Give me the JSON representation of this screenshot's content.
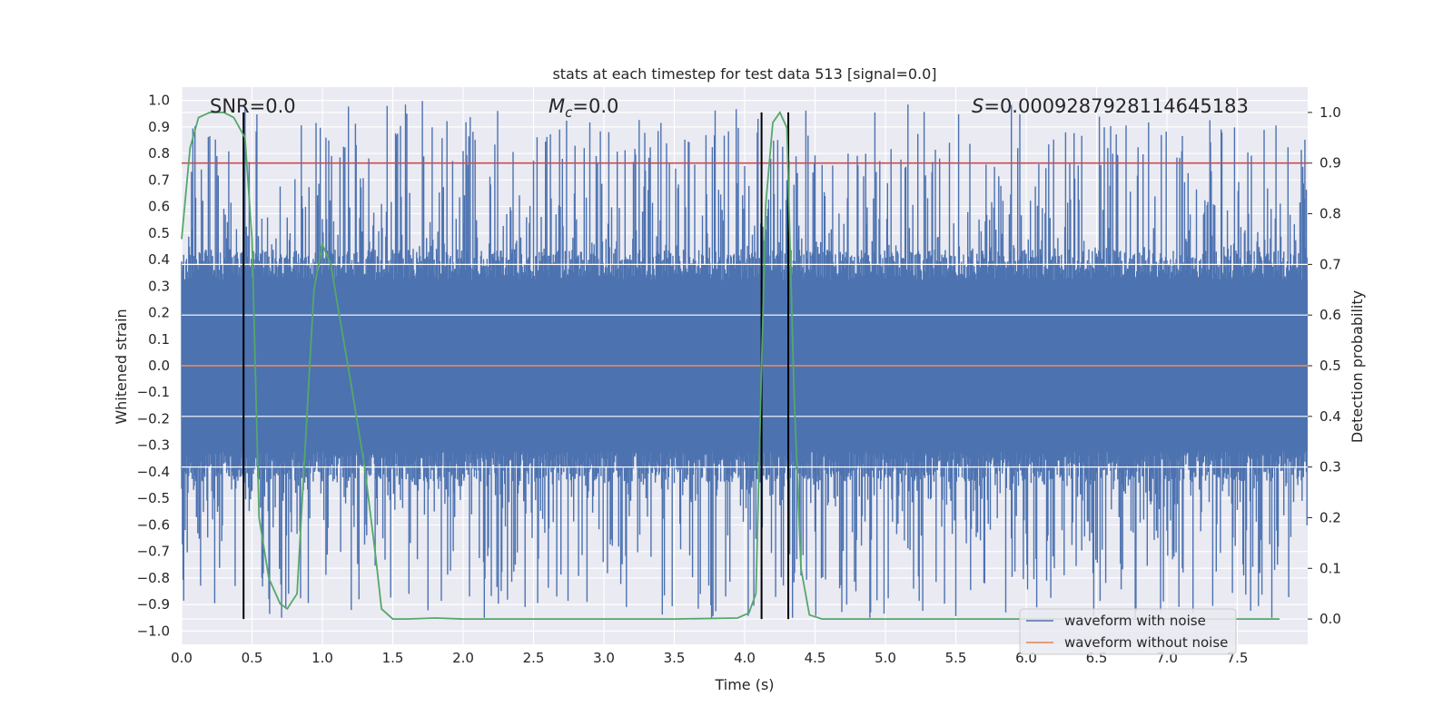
{
  "chart_data": {
    "type": "line",
    "title": "stats at each timestep for test data 513 [signal=0.0]",
    "xlabel": "Time (s)",
    "ylabel": "Whitened strain",
    "y2label": "Detection probability",
    "xlim": [
      0.0,
      8.0
    ],
    "ylim": [
      -1.05,
      1.05
    ],
    "y2lim": [
      -0.05,
      1.05
    ],
    "xticks": [
      "0.0",
      "0.5",
      "1.0",
      "1.5",
      "2.0",
      "2.5",
      "3.0",
      "3.5",
      "4.0",
      "4.5",
      "5.0",
      "5.5",
      "6.0",
      "6.5",
      "7.0",
      "7.5"
    ],
    "yticks": [
      "1.0",
      "0.9",
      "0.8",
      "0.7",
      "0.6",
      "0.5",
      "0.4",
      "0.3",
      "0.2",
      "0.1",
      "0.0",
      "-0.1",
      "-0.2",
      "-0.3",
      "-0.4",
      "-0.5",
      "-0.6",
      "-0.7",
      "-0.8",
      "-0.9",
      "-1.0"
    ],
    "y2ticks": [
      "1.0",
      "0.9",
      "0.8",
      "0.7",
      "0.6",
      "0.5",
      "0.4",
      "0.3",
      "0.2",
      "0.1",
      "0.0"
    ],
    "annotations": {
      "snr": "SNR=0.0",
      "mc_symbol": "M",
      "mc_sub": "c",
      "mc_value": "=0.0",
      "s_symbol": "S",
      "s_value": "=0.0009287928114645183"
    },
    "threshold_y2": 0.9,
    "vertical_lines_x": [
      0.44,
      4.12,
      4.31
    ],
    "series": [
      {
        "name": "waveform with noise",
        "color": "#4c72b0",
        "type": "noise",
        "duration": 8.0,
        "samples": 1600,
        "typical_extent": 0.38,
        "max_extent": 1.0,
        "note": "dense whitened noise"
      },
      {
        "name": "waveform without noise",
        "color": "#dd8452",
        "x": [
          0.0,
          8.0
        ],
        "y": [
          0.0,
          0.0
        ]
      },
      {
        "name": "detection probability",
        "color": "#55a868",
        "axis": "right",
        "x": [
          0.0,
          0.06,
          0.12,
          0.2,
          0.3,
          0.37,
          0.45,
          0.5,
          0.55,
          0.62,
          0.7,
          0.75,
          0.82,
          0.88,
          0.94,
          1.0,
          1.06,
          1.12,
          1.2,
          1.3,
          1.38,
          1.42,
          1.5,
          1.6,
          1.8,
          2.0,
          3.0,
          3.5,
          3.95,
          4.03,
          4.08,
          4.12,
          4.15,
          4.2,
          4.25,
          4.3,
          4.35,
          4.4,
          4.46,
          4.55,
          4.6,
          5.0,
          6.0,
          7.0,
          7.8
        ],
        "y": [
          0.75,
          0.93,
          0.99,
          1.0,
          1.0,
          0.99,
          0.95,
          0.75,
          0.2,
          0.08,
          0.03,
          0.02,
          0.05,
          0.35,
          0.65,
          0.74,
          0.7,
          0.6,
          0.47,
          0.3,
          0.12,
          0.02,
          0.0,
          0.0,
          0.002,
          0.0,
          0.0,
          0.0,
          0.002,
          0.012,
          0.05,
          0.5,
          0.82,
          0.98,
          1.0,
          0.97,
          0.45,
          0.1,
          0.008,
          0.0,
          0.0,
          0.0,
          0.0,
          0.0,
          0.0
        ]
      }
    ],
    "legend_location": "lower-right",
    "grid": true
  }
}
